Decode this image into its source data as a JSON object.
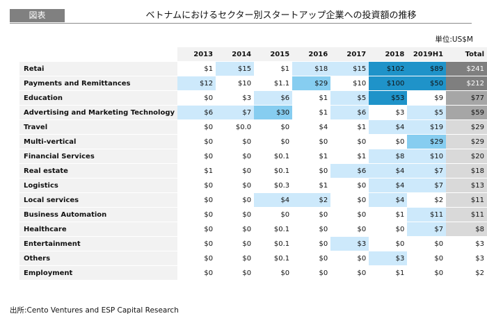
{
  "header": {
    "tag": "図表",
    "title": "ベトナムにおけるセクター別スタートアップ企業への投資額の推移"
  },
  "unit_label": "単位:US$M",
  "source": "出所:Cento Ventures and ESP Capital Research",
  "colors": {
    "light": "#cde9fb",
    "light_mid": "#bde4fa",
    "mid": "#86cdf0",
    "dark": "#1f93c9",
    "total_dark": "#7f7f7f",
    "total_mid": "#a6a6a6",
    "total_light": "#d9d9d9",
    "label_bg": "#f2f2f2"
  },
  "chart_data": {
    "type": "table",
    "columns": [
      "2013",
      "2014",
      "2015",
      "2016",
      "2017",
      "2018",
      "2019H1",
      "Total"
    ],
    "rows": [
      {
        "sector": "Retai",
        "values": [
          "$1",
          "$15",
          "$1",
          "$18",
          "$15",
          "$102",
          "$89",
          "$241"
        ],
        "shade": [
          "",
          "l",
          "",
          "l",
          "l",
          "d",
          "d",
          "t3"
        ]
      },
      {
        "sector": "Payments and Remittances",
        "values": [
          "$12",
          "$10",
          "$1.1",
          "$29",
          "$10",
          "$100",
          "$50",
          "$212"
        ],
        "shade": [
          "l",
          "",
          "",
          "m",
          "",
          "d",
          "d",
          "t3"
        ]
      },
      {
        "sector": "Education",
        "values": [
          "$0",
          "$3",
          "$6",
          "$1",
          "$5",
          "$53",
          "$9",
          "$77"
        ],
        "shade": [
          "",
          "",
          "l",
          "",
          "l",
          "d",
          "",
          "t2"
        ]
      },
      {
        "sector": "Advertising and Marketing Technology",
        "values": [
          "$6",
          "$7",
          "$30",
          "$1",
          "$6",
          "$3",
          "$5",
          "$59"
        ],
        "shade": [
          "l",
          "l",
          "m",
          "",
          "l",
          "",
          "l",
          "t2"
        ]
      },
      {
        "sector": "Travel",
        "values": [
          "$0",
          "$0.0",
          "$0",
          "$4",
          "$1",
          "$4",
          "$19",
          "$29"
        ],
        "shade": [
          "",
          "",
          "",
          "",
          "",
          "l",
          "l",
          "t1"
        ]
      },
      {
        "sector": "Multi-vertical",
        "values": [
          "$0",
          "$0",
          "$0",
          "$0",
          "$0",
          "$0",
          "$29",
          "$29"
        ],
        "shade": [
          "",
          "",
          "",
          "",
          "",
          "",
          "m",
          "t1"
        ]
      },
      {
        "sector": "Financial Services",
        "values": [
          "$0",
          "$0",
          "$0.1",
          "$1",
          "$1",
          "$8",
          "$10",
          "$20"
        ],
        "shade": [
          "",
          "",
          "",
          "",
          "",
          "l",
          "l",
          "t1"
        ]
      },
      {
        "sector": "Real estate",
        "values": [
          "$1",
          "$0",
          "$0.1",
          "$0",
          "$6",
          "$4",
          "$7",
          "$18"
        ],
        "shade": [
          "",
          "",
          "",
          "",
          "l",
          "l",
          "l",
          "t1"
        ]
      },
      {
        "sector": "Logistics",
        "values": [
          "$0",
          "$0",
          "$0.3",
          "$1",
          "$0",
          "$4",
          "$7",
          "$13"
        ],
        "shade": [
          "",
          "",
          "",
          "",
          "",
          "l",
          "l",
          "t1"
        ]
      },
      {
        "sector": "Local services",
        "values": [
          "$0",
          "$0",
          "$4",
          "$2",
          "$0",
          "$4",
          "$2",
          "$11"
        ],
        "shade": [
          "",
          "",
          "l",
          "l",
          "",
          "l",
          "",
          "t1"
        ]
      },
      {
        "sector": "Business Automation",
        "values": [
          "$0",
          "$0",
          "$0",
          "$0",
          "$0",
          "$1",
          "$11",
          "$11"
        ],
        "shade": [
          "",
          "",
          "",
          "",
          "",
          "",
          "l",
          "t1"
        ]
      },
      {
        "sector": "Healthcare",
        "values": [
          "$0",
          "$0",
          "$0.1",
          "$0",
          "$0",
          "$0",
          "$7",
          "$8"
        ],
        "shade": [
          "",
          "",
          "",
          "",
          "",
          "",
          "l",
          "t0"
        ]
      },
      {
        "sector": "Entertainment",
        "values": [
          "$0",
          "$0",
          "$0.1",
          "$0",
          "$3",
          "$0",
          "$0",
          "$3"
        ],
        "shade": [
          "",
          "",
          "",
          "",
          "l",
          "",
          "",
          ""
        ]
      },
      {
        "sector": "Others",
        "values": [
          "$0",
          "$0",
          "$0.1",
          "$0",
          "$0",
          "$3",
          "$0",
          "$3"
        ],
        "shade": [
          "",
          "",
          "",
          "",
          "",
          "l",
          "",
          ""
        ]
      },
      {
        "sector": "Employment",
        "values": [
          "$0",
          "$0",
          "$0",
          "$0",
          "$0",
          "$1",
          "$0",
          "$2"
        ],
        "shade": [
          "",
          "",
          "",
          "",
          "",
          "",
          "",
          ""
        ]
      }
    ]
  }
}
